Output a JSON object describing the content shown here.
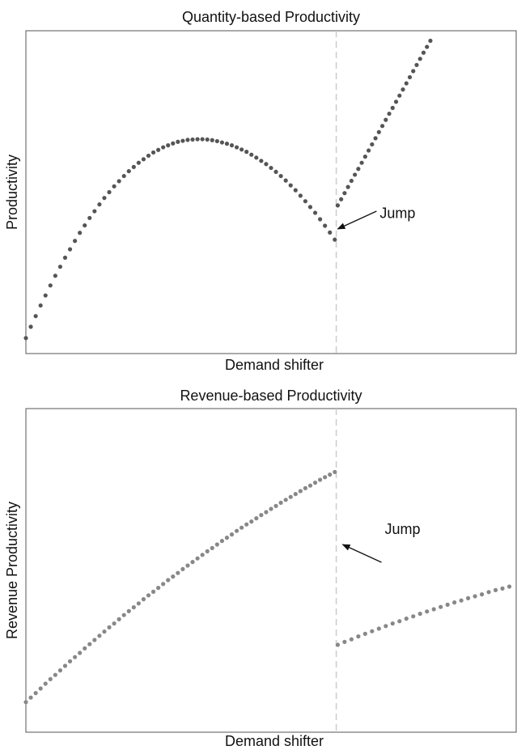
{
  "chart_data": [
    {
      "type": "scatter",
      "title": "Quantity-based Productivity",
      "xlabel": "Demand shifter",
      "ylabel": "Productivity",
      "xlim": [
        0,
        100
      ],
      "ylim": [
        0,
        100
      ],
      "vline": 63.3,
      "annotation": "Jump",
      "annotation_xy": [
        63.6,
        38.6
      ],
      "series": [
        {
          "color": "#555555",
          "x": [
            0,
            1,
            2,
            3,
            4,
            5,
            6,
            7,
            8,
            9,
            10,
            11,
            12,
            13,
            14,
            15,
            16,
            17,
            18,
            19,
            20,
            21,
            22,
            23,
            24,
            25,
            26,
            27,
            28,
            29,
            30,
            31,
            32,
            33,
            34,
            35,
            36,
            37,
            38,
            39,
            40,
            41,
            42,
            43,
            44,
            45,
            46,
            47,
            48,
            49,
            50,
            51,
            52,
            53,
            54,
            55,
            56,
            57,
            58,
            59,
            60,
            61,
            62,
            63
          ],
          "values": [
            4.8,
            8.3,
            11.6,
            14.9,
            18.0,
            21.1,
            24.1,
            26.9,
            29.7,
            32.3,
            34.9,
            37.4,
            39.7,
            42.0,
            44.1,
            46.2,
            48.2,
            50.0,
            51.8,
            53.4,
            55.0,
            56.5,
            57.8,
            59.1,
            60.2,
            61.3,
            62.3,
            63.1,
            63.9,
            64.5,
            65.1,
            65.6,
            65.9,
            66.2,
            66.3,
            66.4,
            66.4,
            66.3,
            66.1,
            65.8,
            65.4,
            65.0,
            64.5,
            63.9,
            63.2,
            62.5,
            61.6,
            60.7,
            59.7,
            58.7,
            57.5,
            56.3,
            55.0,
            53.6,
            52.1,
            50.6,
            48.9,
            47.2,
            45.4,
            43.6,
            41.6,
            39.6,
            37.5,
            35.3
          ]
        },
        {
          "color": "#555555",
          "x": [
            63.6,
            64.3,
            65.0,
            65.7,
            66.4,
            67.1,
            67.8,
            68.5,
            69.2,
            69.9,
            70.6,
            71.3,
            72.0,
            72.7,
            73.4,
            74.1,
            74.8,
            75.5,
            76.2,
            76.9,
            77.6,
            78.3,
            79.0,
            79.7,
            80.4,
            81.1,
            81.8,
            82.5
          ],
          "values": [
            45.9,
            47.8,
            49.7,
            51.6,
            53.5,
            55.4,
            57.2,
            59.1,
            61.0,
            62.9,
            64.8,
            66.7,
            68.6,
            70.5,
            72.4,
            74.3,
            76.1,
            78.0,
            79.9,
            81.8,
            83.7,
            85.6,
            87.5,
            89.4,
            91.3,
            93.2,
            95.0,
            96.9
          ]
        }
      ]
    },
    {
      "type": "scatter",
      "title": "Revenue-based Productivity",
      "xlabel": "Demand shifter",
      "ylabel": "Revenue Productivity",
      "xlim": [
        0,
        100
      ],
      "ylim": [
        0,
        100
      ],
      "vline": 63.3,
      "annotation": "Jump",
      "annotation_xy": [
        64.6,
        58.0
      ],
      "series": [
        {
          "color": "#888888",
          "x": [
            0,
            1,
            2,
            3,
            4,
            5,
            6,
            7,
            8,
            9,
            10,
            11,
            12,
            13,
            14,
            15,
            16,
            17,
            18,
            19,
            20,
            21,
            22,
            23,
            24,
            25,
            26,
            27,
            28,
            29,
            30,
            31,
            32,
            33,
            34,
            35,
            36,
            37,
            38,
            39,
            40,
            41,
            42,
            43,
            44,
            45,
            46,
            47,
            48,
            49,
            50,
            51,
            52,
            53,
            54,
            55,
            56,
            57,
            58,
            59,
            60,
            61,
            62,
            63
          ],
          "values": [
            9.3,
            10.7,
            12.1,
            13.5,
            15.0,
            16.4,
            17.7,
            19.1,
            20.5,
            21.9,
            23.2,
            24.5,
            25.9,
            27.2,
            28.5,
            29.8,
            31.1,
            32.4,
            33.6,
            34.9,
            36.2,
            37.4,
            38.6,
            39.8,
            41.1,
            42.3,
            43.4,
            44.6,
            45.8,
            47.0,
            48.1,
            49.2,
            50.4,
            51.5,
            52.6,
            53.7,
            54.8,
            55.9,
            56.9,
            58.0,
            59.1,
            60.1,
            61.1,
            62.2,
            63.2,
            64.2,
            65.1,
            66.1,
            67.1,
            68.0,
            69.0,
            69.9,
            70.9,
            71.8,
            72.7,
            73.6,
            74.5,
            75.4,
            76.2,
            77.1,
            78.0,
            78.8,
            79.6,
            80.4
          ]
        },
        {
          "color": "#888888",
          "x": [
            63.6,
            65.0,
            66.4,
            67.8,
            69.2,
            70.6,
            72.0,
            73.4,
            74.8,
            76.2,
            77.6,
            79.0,
            80.4,
            81.8,
            83.2,
            84.6,
            86.0,
            87.4,
            88.8,
            90.2,
            91.6,
            93.0,
            94.4,
            95.8,
            97.2,
            98.6
          ],
          "values": [
            27.0,
            27.9,
            28.7,
            29.6,
            30.4,
            31.2,
            32.0,
            32.8,
            33.6,
            34.3,
            35.1,
            35.8,
            36.6,
            37.3,
            38.0,
            38.7,
            39.4,
            40.1,
            40.7,
            41.4,
            42.0,
            42.6,
            43.3,
            43.9,
            44.4,
            45.0
          ]
        }
      ]
    }
  ]
}
